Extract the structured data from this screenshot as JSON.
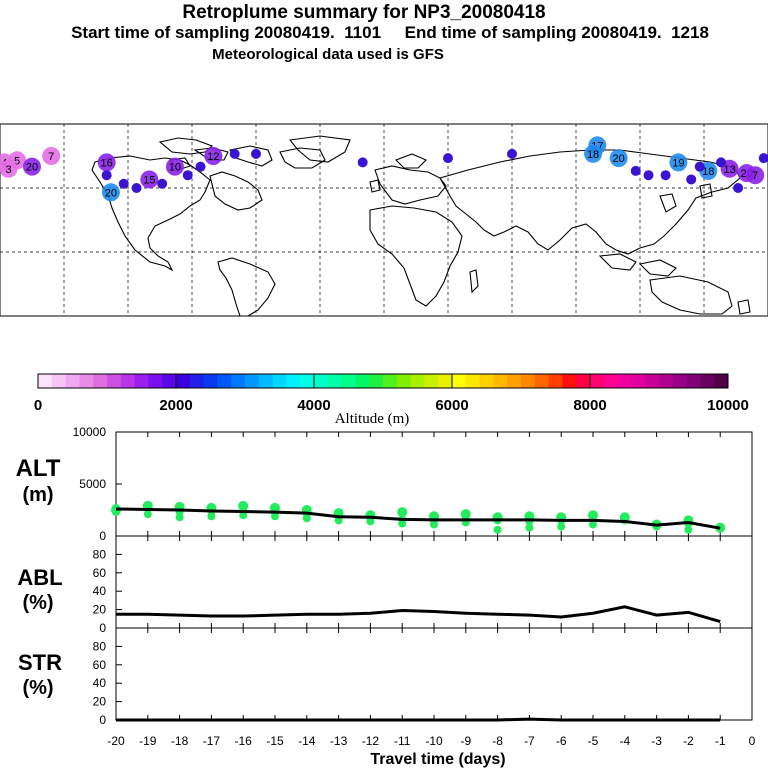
{
  "header": {
    "title": "Retroplume summary for NP3_20080418",
    "sampling": "Start time of sampling 20080419.  1101     End time of sampling 20080419.  1218",
    "met": "Meteorological data used is GFS"
  },
  "colorbar": {
    "label": "Altitude (m)",
    "tick_labels": [
      "0",
      "2000",
      "4000",
      "6000",
      "8000",
      "10000"
    ],
    "colors": [
      "#fbe3fb",
      "#f6c6f6",
      "#f0a8f0",
      "#e98be9",
      "#e06ee0",
      "#cf4fe0",
      "#b836e8",
      "#9a1ff0",
      "#7a10f0",
      "#5a08e8",
      "#3a00e0",
      "#2020ea",
      "#0a3af0",
      "#0058f8",
      "#0078ff",
      "#0098ff",
      "#00b8ff",
      "#00d8ff",
      "#00f0ff",
      "#00ffe6",
      "#00ffc8",
      "#00ffa8",
      "#00ff8a",
      "#00f868",
      "#20f040",
      "#50f020",
      "#80f000",
      "#a8f000",
      "#c8f000",
      "#e8f000",
      "#ffff00",
      "#ffe800",
      "#ffd000",
      "#ffb800",
      "#ffa000",
      "#ff8800",
      "#ff6600",
      "#ff4000",
      "#ff1010",
      "#ff0044",
      "#ff0070",
      "#ff0090",
      "#f000a0",
      "#e000a0",
      "#c80098",
      "#b00090",
      "#980088",
      "#800078",
      "#680060",
      "#500048"
    ]
  },
  "map": {
    "plumes": [
      {
        "label": "4",
        "color": "pink",
        "lon": -178,
        "lat": 72
      },
      {
        "label": "5",
        "color": "pink",
        "lon": -172,
        "lat": 73
      },
      {
        "label": "3",
        "color": "pink",
        "lon": -176,
        "lat": 69
      },
      {
        "label": "20",
        "color": "purple",
        "lon": -165,
        "lat": 70
      },
      {
        "label": "7",
        "color": "pink",
        "lon": -156,
        "lat": 75
      },
      {
        "label": "16",
        "color": "purple",
        "lon": -130,
        "lat": 72
      },
      {
        "label": "15",
        "color": "purple",
        "lon": -110,
        "lat": 64
      },
      {
        "label": "12",
        "color": "purple",
        "lon": -80,
        "lat": 75
      },
      {
        "label": "10",
        "color": "purple",
        "lon": -98,
        "lat": 70
      },
      {
        "label": "20",
        "color": "blue",
        "lon": -128,
        "lat": 58
      },
      {
        "label": "17",
        "color": "blue",
        "lon": 100,
        "lat": 80
      },
      {
        "label": "18",
        "color": "blue",
        "lon": 98,
        "lat": 76
      },
      {
        "label": "20",
        "color": "blue",
        "lon": 110,
        "lat": 74
      },
      {
        "label": "19",
        "color": "blue",
        "lon": 138,
        "lat": 72
      },
      {
        "label": "18",
        "color": "blue",
        "lon": 152,
        "lat": 68
      },
      {
        "label": "13",
        "color": "purple",
        "lon": 162,
        "lat": 69
      },
      {
        "label": "20",
        "color": "purple",
        "lon": 170,
        "lat": 67
      },
      {
        "label": "7",
        "color": "purple",
        "lon": 174,
        "lat": 66
      }
    ]
  },
  "panels": {
    "alt": {
      "label1": "ALT",
      "label2": "(m)",
      "yticks": [
        "10000",
        "5000",
        "0"
      ]
    },
    "abl": {
      "label1": "ABL",
      "label2": "(%)",
      "yticks": [
        "80",
        "60",
        "40",
        "20",
        "0"
      ]
    },
    "str": {
      "label1": "STR",
      "label2": "(%)",
      "yticks": [
        "80",
        "60",
        "40",
        "20",
        "0"
      ]
    }
  },
  "x_axis": {
    "label": "Travel time (days)",
    "tick_labels": [
      "-20",
      "-19",
      "-18",
      "-17",
      "-16",
      "-15",
      "-14",
      "-13",
      "-12",
      "-11",
      "-10",
      "-9",
      "-8",
      "-7",
      "-6",
      "-5",
      "-4",
      "-3",
      "-2",
      "-1",
      "0"
    ]
  },
  "chart_data": {
    "type": "line",
    "title": "Retroplume summary for NP3_20080418",
    "xlabel": "Travel time (days)",
    "x": [
      -20,
      -19,
      -18,
      -17,
      -16,
      -15,
      -14,
      -13,
      -12,
      -11,
      -10,
      -9,
      -8,
      -7,
      -6,
      -5,
      -4,
      -3,
      -2,
      -1
    ],
    "xlim": [
      -20,
      0
    ],
    "series": [
      {
        "name": "ALT",
        "ylabel": "ALT (m)",
        "ylim": [
          0,
          10000
        ],
        "values": [
          2600,
          2550,
          2500,
          2400,
          2350,
          2300,
          2200,
          1850,
          1800,
          1600,
          1550,
          1550,
          1550,
          1550,
          1500,
          1500,
          1400,
          1050,
          1300,
          750
        ]
      },
      {
        "name": "ABL",
        "ylabel": "ABL (%)",
        "ylim": [
          0,
          100
        ],
        "values": [
          15,
          15,
          14,
          13,
          13,
          14,
          15,
          15,
          16,
          19,
          18,
          16,
          15,
          14,
          12,
          16,
          23,
          14,
          17,
          7
        ]
      },
      {
        "name": "STR",
        "ylabel": "STR (%)",
        "ylim": [
          0,
          100
        ],
        "values": [
          0,
          0,
          0,
          0,
          0,
          0,
          0,
          0,
          0,
          0,
          0,
          0,
          0,
          1,
          0,
          0,
          0,
          0,
          0,
          0
        ]
      }
    ],
    "alt_scatter": [
      {
        "x": -20,
        "y": [
          2500,
          2700,
          2300
        ]
      },
      {
        "x": -19,
        "y": [
          2900,
          2600,
          2100
        ]
      },
      {
        "x": -18,
        "y": [
          2800,
          2300,
          1800
        ]
      },
      {
        "x": -17,
        "y": [
          2700,
          2400,
          1900
        ]
      },
      {
        "x": -16,
        "y": [
          2900,
          2500,
          2000
        ]
      },
      {
        "x": -15,
        "y": [
          2700,
          2300,
          1900
        ]
      },
      {
        "x": -14,
        "y": [
          2500,
          2100,
          1700
        ]
      },
      {
        "x": -13,
        "y": [
          2200,
          1800,
          1500
        ]
      },
      {
        "x": -12,
        "y": [
          2000,
          1700,
          1400
        ]
      },
      {
        "x": -11,
        "y": [
          2300,
          1600,
          1200
        ]
      },
      {
        "x": -10,
        "y": [
          1900,
          1500,
          1100
        ]
      },
      {
        "x": -9,
        "y": [
          2100,
          1700,
          1300
        ]
      },
      {
        "x": -8,
        "y": [
          1800,
          1500,
          600
        ]
      },
      {
        "x": -7,
        "y": [
          1900,
          1400,
          800
        ]
      },
      {
        "x": -6,
        "y": [
          1800,
          1500,
          900
        ]
      },
      {
        "x": -5,
        "y": [
          2000,
          1600,
          1100
        ]
      },
      {
        "x": -4,
        "y": [
          1800,
          1500
        ]
      },
      {
        "x": -3,
        "y": [
          1100,
          900
        ]
      },
      {
        "x": -2,
        "y": [
          1500,
          1200,
          600
        ]
      },
      {
        "x": -1,
        "y": [
          800,
          700
        ]
      }
    ]
  }
}
